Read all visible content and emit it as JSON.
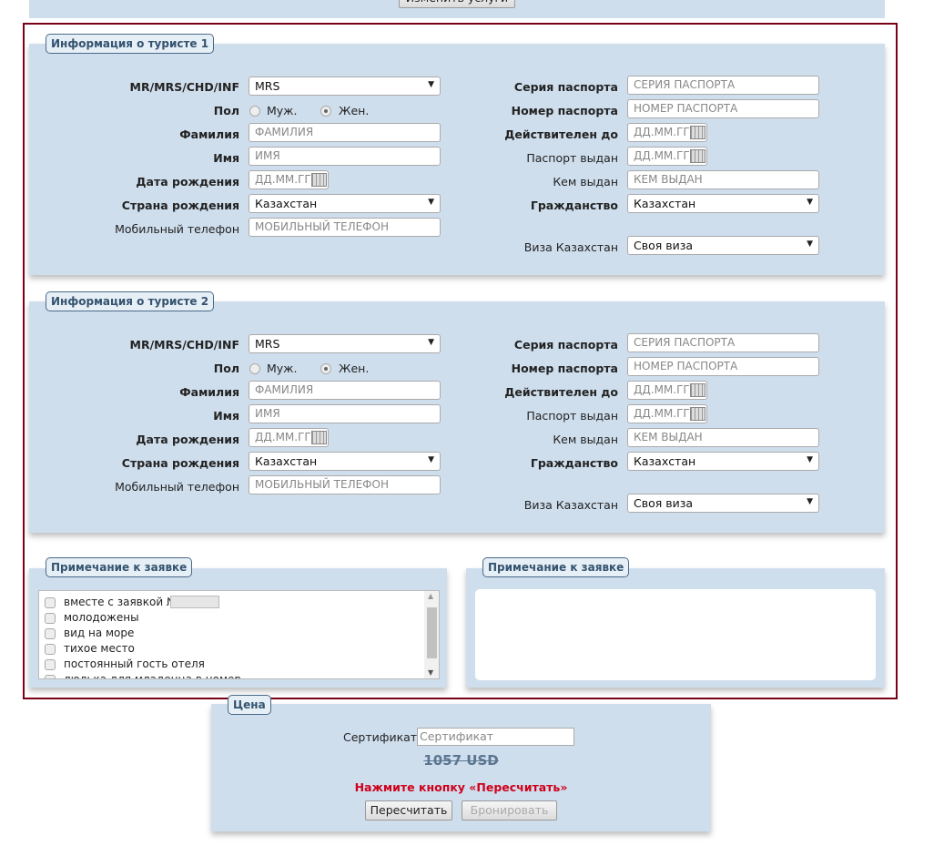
{
  "top": {
    "change_services_button": "Изменить услуги"
  },
  "accent_border": "#7a0018",
  "tourists": [
    {
      "legend": "Информация о туристе 1",
      "title_label": "MR/MRS/CHD/INF",
      "title_value": "MRS",
      "gender_label": "Пол",
      "male": "Муж.",
      "female": "Жен.",
      "gender_selected": "female",
      "surname_label": "Фамилия",
      "surname_ph": "ФАМИЛИЯ",
      "name_label": "Имя",
      "name_ph": "ИМЯ",
      "dob_label": "Дата рождения",
      "date_ph": "ДД.ММ.ГГГ",
      "country_label": "Страна рождения",
      "country_value": "Казахстан",
      "phone_label": "Мобильный телефон",
      "phone_ph": "МОБИЛЬНЫЙ ТЕЛЕФОН",
      "pser_label": "Серия паспорта",
      "pser_ph": "СЕРИЯ ПАСПОРТА",
      "pnum_label": "Номер паспорта",
      "pnum_ph": "НОМЕР ПАСПОРТА",
      "valid_label": "Действителен до",
      "issued_label": "Паспорт выдан",
      "issuer_label": "Кем выдан",
      "issuer_ph": "КЕМ ВЫДАН",
      "citizen_label": "Гражданство",
      "citizen_value": "Казахстан",
      "visa_label": "Виза Казахстан",
      "visa_value": "Своя виза"
    },
    {
      "legend": "Информация о туристе 2",
      "title_label": "MR/MRS/CHD/INF",
      "title_value": "MRS",
      "gender_label": "Пол",
      "male": "Муж.",
      "female": "Жен.",
      "gender_selected": "female",
      "surname_label": "Фамилия",
      "surname_ph": "ФАМИЛИЯ",
      "name_label": "Имя",
      "name_ph": "ИМЯ",
      "dob_label": "Дата рождения",
      "date_ph": "ДД.ММ.ГГГ",
      "country_label": "Страна рождения",
      "country_value": "Казахстан",
      "phone_label": "Мобильный телефон",
      "phone_ph": "МОБИЛЬНЫЙ ТЕЛЕФОН",
      "pser_label": "Серия паспорта",
      "pser_ph": "СЕРИЯ ПАСПОРТА",
      "pnum_label": "Номер паспорта",
      "pnum_ph": "НОМЕР ПАСПОРТА",
      "valid_label": "Действителен до",
      "issued_label": "Паспорт выдан",
      "issuer_label": "Кем выдан",
      "issuer_ph": "КЕМ ВЫДАН",
      "citizen_label": "Гражданство",
      "citizen_value": "Казахстан",
      "visa_label": "Виза Казахстан",
      "visa_value": "Своя виза"
    }
  ],
  "notes": {
    "legend_left": "Примечание к заявке",
    "legend_right": "Примечание к заявке",
    "items": [
      "вместе с заявкой №",
      "молодожены",
      "вид на море",
      "тихое место",
      "постоянный гость отеля",
      "люлька для младенца в номер"
    ]
  },
  "price": {
    "legend": "Цена",
    "cert_label": "Сертификат:",
    "cert_ph": "Сертификат",
    "old_price": "1057 USD",
    "warning": "Нажмите кнопку «Пересчитать»",
    "warning_color": "#d0001b",
    "recalc_button": "Пересчитать",
    "book_button": "Бронировать"
  }
}
